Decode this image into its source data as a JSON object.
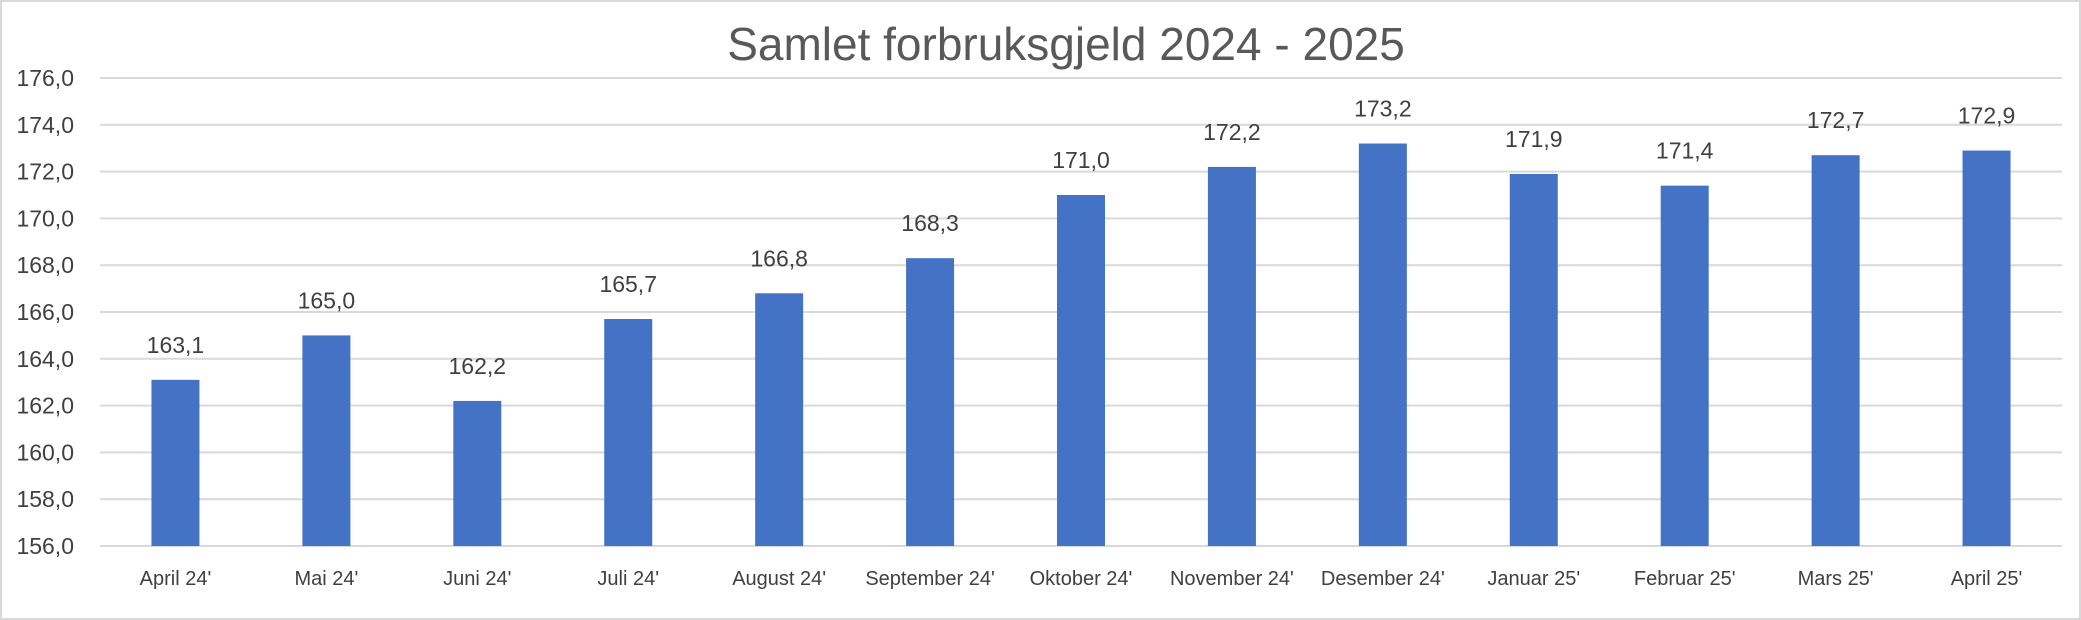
{
  "chart_data": {
    "type": "bar",
    "title": "Samlet forbruksgjeld 2024 - 2025",
    "xlabel": "",
    "ylabel": "",
    "categories": [
      "April 24'",
      "Mai 24'",
      "Juni 24'",
      "Juli 24'",
      "August 24'",
      "September 24'",
      "Oktober 24'",
      "November 24'",
      "Desember 24'",
      "Januar 25'",
      "Februar 25'",
      "Mars 25'",
      "April 25'"
    ],
    "values": [
      163.1,
      165.0,
      162.2,
      165.7,
      166.8,
      168.3,
      171.0,
      172.2,
      173.2,
      171.9,
      171.4,
      172.7,
      172.9
    ],
    "data_labels": [
      "163,1",
      "165,0",
      "162,2",
      "165,7",
      "166,8",
      "168,3",
      "171,0",
      "172,2",
      "173,2",
      "171,9",
      "171,4",
      "172,7",
      "172,9"
    ],
    "ylim": [
      156,
      176
    ],
    "yticks": [
      156,
      158,
      160,
      162,
      164,
      166,
      168,
      170,
      172,
      174,
      176
    ],
    "ytick_labels": [
      "156,0",
      "158,0",
      "160,0",
      "162,0",
      "164,0",
      "166,0",
      "168,0",
      "170,0",
      "172,0",
      "174,0",
      "176,0"
    ],
    "grid": true,
    "legend": "none",
    "bar_color": "#4472c4"
  }
}
